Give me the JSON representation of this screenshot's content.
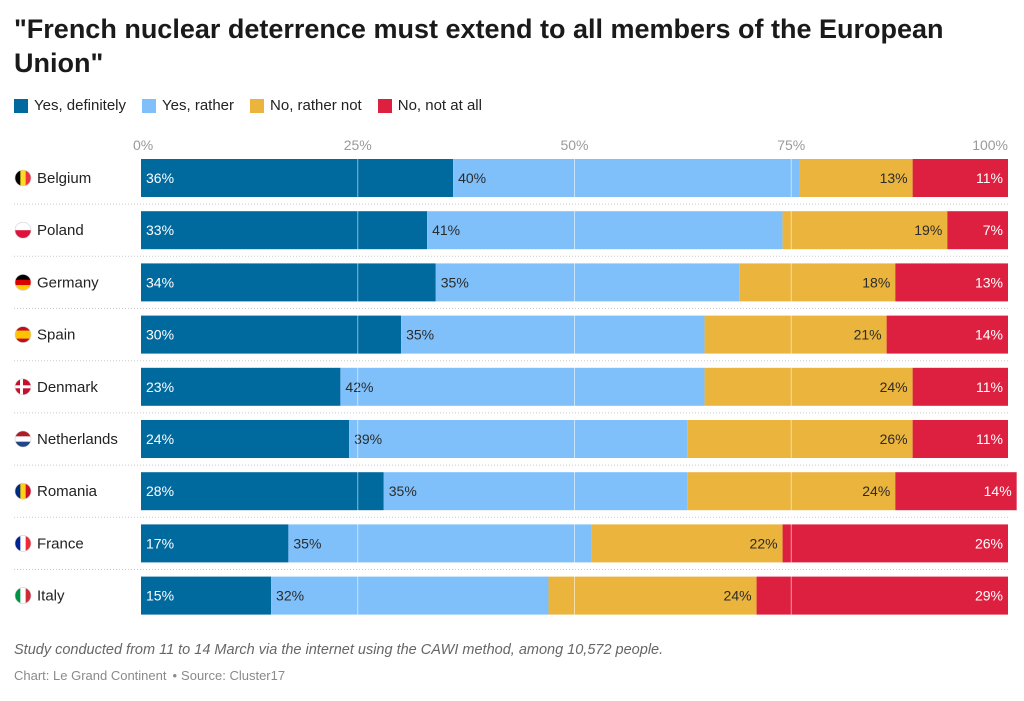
{
  "header": {
    "title": "\"French nuclear deterrence must extend to all members of the European Union\""
  },
  "colors": {
    "yes_definitely": "#00699e",
    "yes_rather": "#7fc0fb",
    "no_rather_not": "#ebb43d",
    "no_not_at_all": "#dd203f",
    "label_light": "#ffffff",
    "label_dark": "#2b2b2b"
  },
  "chart_data": {
    "type": "bar",
    "orientation": "horizontal",
    "stacked": true,
    "title": "\"French nuclear deterrence must extend to all members of the European Union\"",
    "categories": [
      "Belgium",
      "Poland",
      "Germany",
      "Spain",
      "Denmark",
      "Netherlands",
      "Romania",
      "France",
      "Italy"
    ],
    "flags": {
      "Belgium": [
        "#000000",
        "#fdda24",
        "#ef3340"
      ],
      "Poland": [
        "#ffffff",
        "#dc143c"
      ],
      "Germany": [
        "#000000",
        "#dd0000",
        "#ffce00"
      ],
      "Spain": [
        "#c60b1e",
        "#ffc400",
        "#c60b1e"
      ],
      "Denmark": [
        "#c8102e",
        "#ffffff"
      ],
      "Netherlands": [
        "#ae1c28",
        "#ffffff",
        "#21468b"
      ],
      "Romania": [
        "#002b7f",
        "#fcd116",
        "#ce1126"
      ],
      "France": [
        "#002395",
        "#ffffff",
        "#ed2939"
      ],
      "Italy": [
        "#009246",
        "#ffffff",
        "#ce2b37"
      ]
    },
    "series": [
      {
        "name": "Yes, definitely",
        "values": [
          36,
          33,
          34,
          30,
          23,
          24,
          28,
          17,
          15
        ]
      },
      {
        "name": "Yes, rather",
        "values": [
          40,
          41,
          35,
          35,
          42,
          39,
          35,
          35,
          32
        ]
      },
      {
        "name": "No, rather not",
        "values": [
          13,
          19,
          18,
          21,
          24,
          26,
          24,
          22,
          24
        ]
      },
      {
        "name": "No, not at all",
        "values": [
          11,
          7,
          13,
          14,
          11,
          11,
          14,
          26,
          29
        ]
      }
    ],
    "xlim": [
      0,
      100
    ],
    "xticks": [
      "0%",
      "25%",
      "50%",
      "75%",
      "100%"
    ],
    "legend_position": "top-left",
    "grid": true
  },
  "footer": {
    "note": "Study conducted from 11 to 14 March via the internet using the CAWI method, among 10,572 people.",
    "chart_credit": "Chart: Le Grand Continent",
    "separator": "•",
    "source": "Source: Cluster17"
  }
}
